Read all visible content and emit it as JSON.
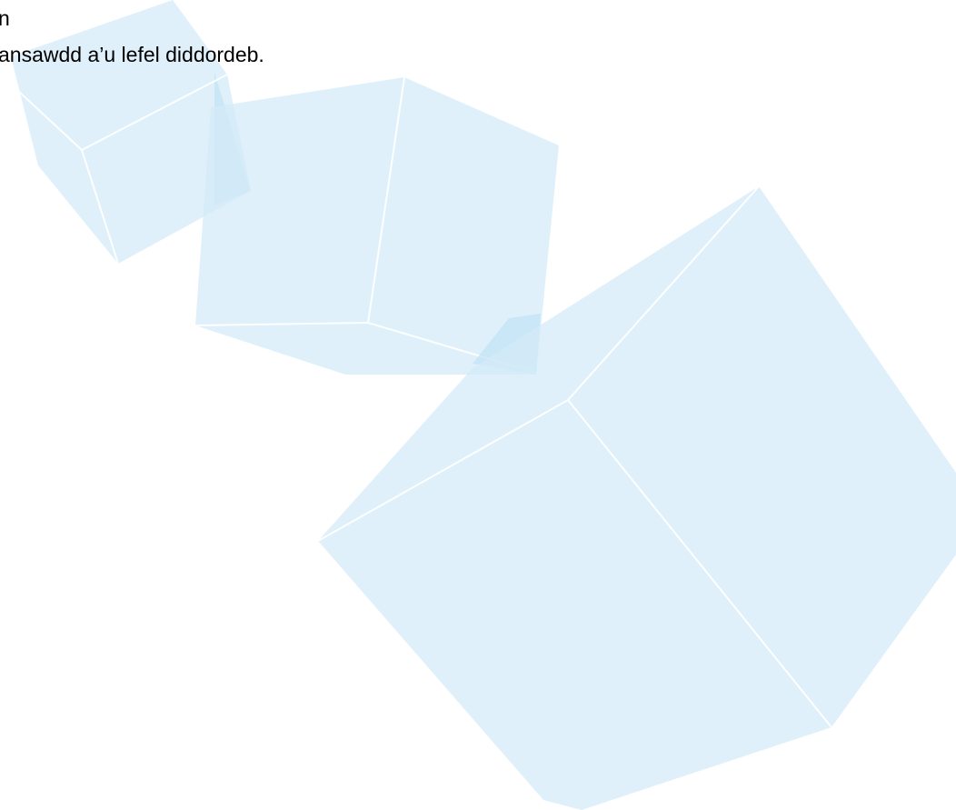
{
  "lines": [
    "n",
    "ansawdd a’u lefel diddordeb."
  ]
}
